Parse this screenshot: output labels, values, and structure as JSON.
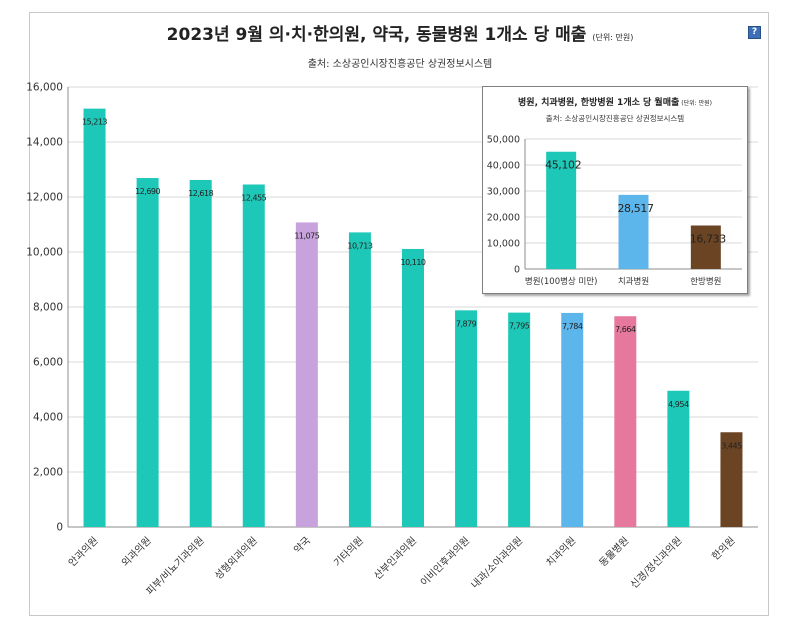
{
  "header": {
    "title": "2023년 9월 의·치·한의원, 약국, 동물병원 1개소 당 매출",
    "unit": "(단위: 만원)",
    "source": "출처: 소상공인시장진흥공단 상권정보시스템",
    "corner_icon": "info-icon"
  },
  "chart_data": [
    {
      "type": "bar",
      "categories": [
        "안과의원",
        "외과의원",
        "피부/비뇨기과의원",
        "성형외과의원",
        "약국",
        "기타의원",
        "산부인과의원",
        "이비인후과의원",
        "내과/소아과의원",
        "치과의원",
        "동물병원",
        "신경/정신과의원",
        "한의원"
      ],
      "values": [
        15213,
        12690,
        12618,
        12455,
        11075,
        10713,
        10110,
        7879,
        7795,
        7784,
        7664,
        4954,
        3445
      ],
      "value_labels": [
        "15,213",
        "12,690",
        "12,618",
        "12,455",
        "11,075",
        "10,713",
        "10,110",
        "7,879",
        "7,795",
        "7,784",
        "7,664",
        "4,954",
        "3,445"
      ],
      "colors": [
        "#1ec8b8",
        "#1ec8b8",
        "#1ec8b8",
        "#1ec8b8",
        "#c8a2dc",
        "#1ec8b8",
        "#1ec8b8",
        "#1ec8b8",
        "#1ec8b8",
        "#5cb6ec",
        "#e6789e",
        "#1ec8b8",
        "#6b4423"
      ],
      "ylim": [
        0,
        16000
      ],
      "yticks": [
        "0",
        "2,000",
        "4,000",
        "6,000",
        "8,000",
        "10,000",
        "12,000",
        "14,000",
        "16,000"
      ],
      "grid": true
    },
    {
      "type": "bar",
      "title": "병원, 치과병원, 한방병원 1개소 당 월매출",
      "unit": "(단위: 만원)",
      "source": "출처: 소상공인시장진흥공단 상권정보시스템",
      "categories": [
        "병원(100병상 미만)",
        "치과병원",
        "한방병원"
      ],
      "values": [
        45102,
        28517,
        16733
      ],
      "value_labels": [
        "45,102",
        "28,517",
        "16,733"
      ],
      "colors": [
        "#1ec8b8",
        "#5cb6ec",
        "#6b4423"
      ],
      "ylim": [
        0,
        50000
      ],
      "yticks": [
        "0",
        "10,000",
        "20,000",
        "30,000",
        "40,000",
        "50,000"
      ],
      "grid": true
    }
  ]
}
